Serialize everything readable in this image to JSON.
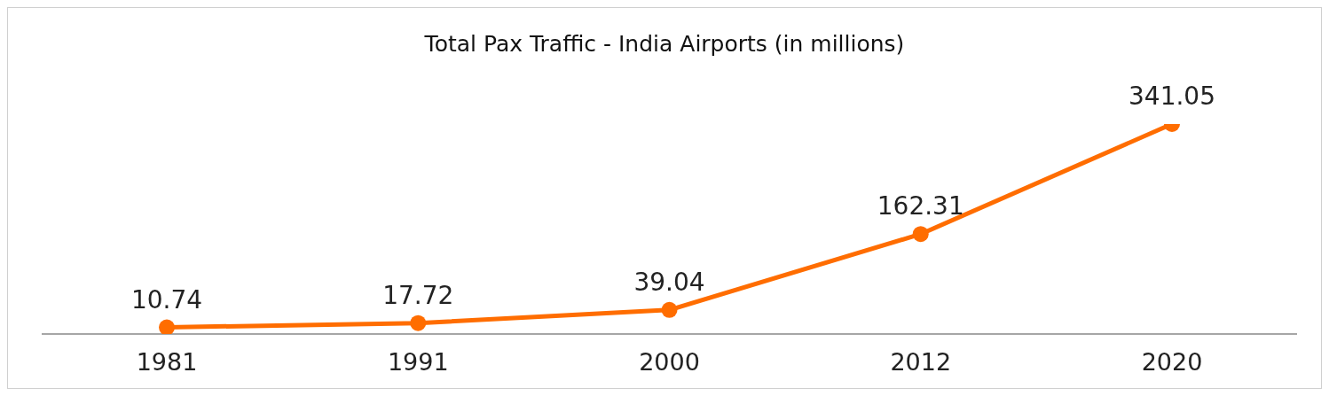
{
  "chart_data": {
    "type": "line",
    "title": "Total Pax Traffic - India Airports (in millions)",
    "categories": [
      "1981",
      "1991",
      "2000",
      "2012",
      "2020"
    ],
    "series": [
      {
        "color": "#ff6d00",
        "values": [
          10.74,
          17.72,
          39.04,
          162.31,
          341.05
        ]
      }
    ],
    "tick_labels": "x",
    "marker": "circle",
    "line_style": "solid",
    "data_labels": true
  }
}
